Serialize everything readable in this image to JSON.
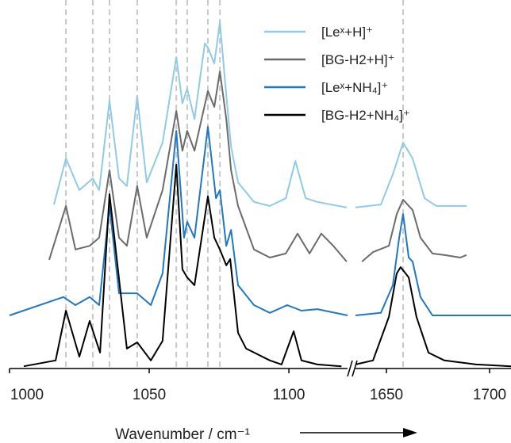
{
  "chart_data": [
    {
      "type": "line",
      "xlabel": "Wavenumber / cm⁻¹",
      "legend": "upper right",
      "xlim": [
        1000,
        1121
      ],
      "ylim": [
        0,
        100
      ],
      "xticks": [
        1000,
        1050,
        1100
      ],
      "reference_lines": [
        1020.2,
        1029.8,
        1035.8,
        1045.7,
        1059.7,
        1063.6,
        1071.0,
        1075.3
      ],
      "series": [
        {
          "name": "[Leˣ+H]⁺",
          "color": "#8fcbe6",
          "x": [
            1015.9,
            1020.2,
            1025.0,
            1029.8,
            1032.1,
            1035.8,
            1039.2,
            1042.0,
            1045.7,
            1049.1,
            1054.8,
            1059.7,
            1061.9,
            1063.6,
            1066.2,
            1069.9,
            1071.0,
            1073.3,
            1075.3,
            1077.6,
            1079.3,
            1081.8,
            1087.5,
            1093.2,
            1098.9,
            1102.3,
            1106.0,
            1110.2,
            1120.7
          ],
          "values": [
            44.5,
            57.0,
            48.4,
            51.6,
            48.4,
            72.7,
            51.6,
            49.5,
            73.8,
            50.5,
            61.3,
            84.5,
            72.0,
            75.9,
            67.7,
            88.2,
            87.1,
            82.8,
            94.0,
            74.2,
            60.2,
            50.5,
            45.2,
            44.1,
            46.2,
            56.3,
            46.2,
            45.2,
            43.7
          ]
        },
        {
          "name": "[BG-H2+H]⁺",
          "color": "#6b6b6b",
          "x": [
            1014.2,
            1020.2,
            1023.6,
            1028.7,
            1032.1,
            1035.8,
            1039.2,
            1042.0,
            1045.7,
            1049.1,
            1054.8,
            1059.7,
            1061.9,
            1063.6,
            1066.2,
            1071.0,
            1073.3,
            1075.3,
            1077.6,
            1079.3,
            1081.8,
            1087.5,
            1093.2,
            1098.9,
            1103.1,
            1107.4,
            1111.6,
            1115.9,
            1120.7
          ],
          "values": [
            29.5,
            44.1,
            32.3,
            33.3,
            35.5,
            53.8,
            35.5,
            33.3,
            49.5,
            35.5,
            48.4,
            69.9,
            59.1,
            64.5,
            59.1,
            75.3,
            71.0,
            80.6,
            67.7,
            53.8,
            44.1,
            32.3,
            30.1,
            31.2,
            36.6,
            31.2,
            36.6,
            33.3,
            29.0
          ]
        },
        {
          "name": "[Leˣ+NH₄]⁺",
          "color": "#1f78c1",
          "x": [
            1000,
            1019.3,
            1023.6,
            1028.7,
            1032.1,
            1035.8,
            1039.2,
            1045.7,
            1050.6,
            1054.8,
            1059.7,
            1062.5,
            1063.6,
            1066.2,
            1071.0,
            1073.9,
            1075.3,
            1077.6,
            1079.3,
            1081.8,
            1087.5,
            1093.2,
            1099.4,
            1104.5,
            1110.2,
            1121.0
          ],
          "values": [
            14.4,
            19.4,
            17.2,
            19.4,
            17.2,
            44.1,
            20.4,
            20.4,
            17.2,
            25.8,
            64.5,
            35.5,
            39.8,
            35.5,
            65.6,
            46.2,
            48.4,
            33.3,
            37.6,
            22.6,
            17.2,
            15.1,
            17.2,
            15.7,
            16.1,
            14.4
          ]
        },
        {
          "name": "[BG-H2+NH₄]⁺",
          "color": "#000000",
          "x": [
            1005.1,
            1016.5,
            1020.2,
            1025.0,
            1028.7,
            1032.4,
            1035.8,
            1042.0,
            1045.7,
            1050.6,
            1054.8,
            1059.7,
            1061.9,
            1063.6,
            1066.2,
            1071.0,
            1073.3,
            1075.3,
            1077.6,
            1079.0,
            1081.8,
            1084.7,
            1093.2,
            1097.4,
            1101.7,
            1104.5,
            1110.2,
            1118.8
          ],
          "values": [
            0.6,
            2.2,
            15.7,
            3.2,
            12.9,
            4.3,
            47.3,
            5.4,
            7.1,
            2.2,
            7.5,
            55.3,
            26.9,
            24.7,
            22.6,
            46.7,
            35.5,
            32.3,
            28.0,
            29.7,
            9.7,
            5.4,
            2.2,
            1.1,
            10.1,
            2.2,
            1.1,
            0.6
          ]
        }
      ]
    },
    {
      "type": "line",
      "xlim": [
        1635,
        1710.4
      ],
      "ylim": [
        0,
        100
      ],
      "xticks": [
        1650,
        1700
      ],
      "reference_lines": [
        1658.1
      ],
      "series": [
        {
          "color": "#8fcbe6",
          "x": [
            1635,
            1647.3,
            1653.1,
            1658.1,
            1662.7,
            1668.5,
            1674.2,
            1688.8
          ],
          "values": [
            43.7,
            44.5,
            52.7,
            61.3,
            57.0,
            46.2,
            44.1,
            44.1
          ]
        },
        {
          "color": "#6b6b6b",
          "x": [
            1638.1,
            1643.5,
            1651.2,
            1655,
            1658.1,
            1662.7,
            1666.5,
            1672.3,
            1678.1,
            1685.8,
            1688.8
          ],
          "values": [
            29.0,
            31.6,
            33.3,
            41.9,
            45.8,
            43.0,
            35.5,
            31.2,
            30.8,
            30.1,
            30.8
          ]
        },
        {
          "color": "#1f78c1",
          "x": [
            1635,
            1647.3,
            1653.1,
            1656.2,
            1658.1,
            1660.8,
            1662.7,
            1666.5,
            1672.3,
            1710.4
          ],
          "values": [
            14.4,
            15.1,
            22.6,
            35.5,
            41.9,
            30.1,
            29.0,
            19.4,
            14.4,
            14.4
          ]
        },
        {
          "color": "#000000",
          "x": [
            1635,
            1643.5,
            1651.2,
            1655,
            1656.9,
            1660.8,
            1664.6,
            1670.4,
            1678.1,
            1693.5,
            1710.4
          ],
          "values": [
            1.1,
            2.2,
            14.0,
            25.8,
            27.5,
            24.7,
            14.0,
            4.3,
            2.2,
            1.1,
            0.6
          ]
        }
      ]
    }
  ]
}
